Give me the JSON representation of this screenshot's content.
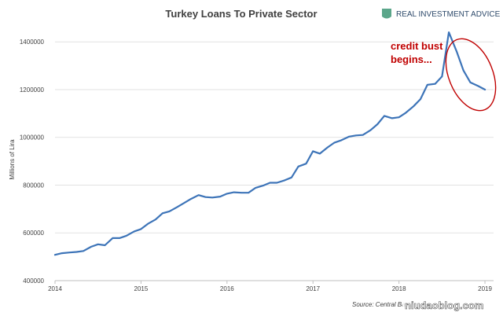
{
  "chart_data": {
    "type": "line",
    "title": "Turkey Loans To Private Sector",
    "ylabel": "Millions of Lira",
    "xlabel": "",
    "ylim": [
      400000,
      1460000
    ],
    "xlim": [
      2014.0,
      2019.1
    ],
    "yticks": [
      "400000",
      "600000",
      "800000",
      "1000000",
      "1200000",
      "1400000"
    ],
    "xticks": [
      "2014",
      "2015",
      "2016",
      "2017",
      "2018",
      "2019"
    ],
    "grid": "horizontal",
    "series": [
      {
        "color": "#3d74b8",
        "x": [
          2014.0,
          2014.08,
          2014.17,
          2014.25,
          2014.33,
          2014.42,
          2014.5,
          2014.58,
          2014.67,
          2014.75,
          2014.83,
          2014.92,
          2015.0,
          2015.08,
          2015.17,
          2015.25,
          2015.33,
          2015.42,
          2015.5,
          2015.58,
          2015.67,
          2015.75,
          2015.83,
          2015.92,
          2016.0,
          2016.08,
          2016.17,
          2016.25,
          2016.33,
          2016.42,
          2016.5,
          2016.58,
          2016.67,
          2016.75,
          2016.83,
          2016.92,
          2017.0,
          2017.08,
          2017.17,
          2017.25,
          2017.33,
          2017.42,
          2017.5,
          2017.58,
          2017.67,
          2017.75,
          2017.83,
          2017.92,
          2018.0,
          2018.08,
          2018.17,
          2018.25,
          2018.33,
          2018.42,
          2018.5,
          2018.58,
          2018.67,
          2018.75,
          2018.83,
          2018.92,
          2019.0
        ],
        "values": [
          508000,
          515000,
          518000,
          520000,
          524000,
          542000,
          552000,
          548000,
          578000,
          578000,
          588000,
          606000,
          616000,
          638000,
          656000,
          682000,
          690000,
          708000,
          725000,
          742000,
          758000,
          750000,
          748000,
          752000,
          764000,
          770000,
          768000,
          768000,
          788000,
          798000,
          810000,
          810000,
          820000,
          832000,
          878000,
          890000,
          942000,
          932000,
          958000,
          978000,
          988000,
          1003000,
          1008000,
          1010000,
          1030000,
          1055000,
          1090000,
          1080000,
          1084000,
          1103000,
          1130000,
          1160000,
          1220000,
          1224000,
          1255000,
          1440000,
          1360000,
          1280000,
          1230000,
          1215000,
          1200000
        ]
      }
    ],
    "annotations": [
      "credit bust",
      "begins..."
    ],
    "source": "Source: Central Bank",
    "brand": "REAL INVESTMENT ADVICE",
    "watermark": "niudaoblog.com"
  },
  "colors": {
    "line": "#3d74b8",
    "annotation": "#c00000",
    "grid": "#d9d9d9",
    "axis": "#bfbfbf",
    "brand_logo": "#5ba68a"
  }
}
